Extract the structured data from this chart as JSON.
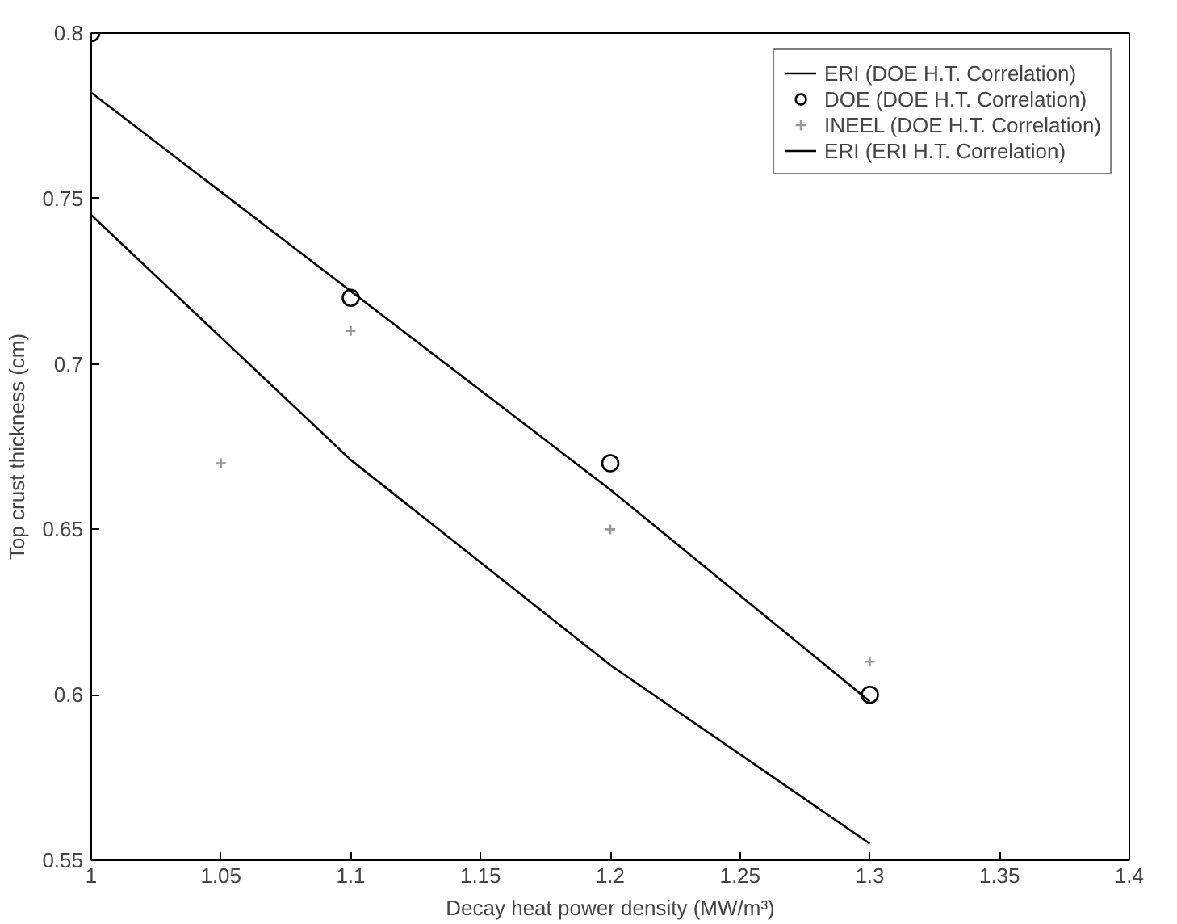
{
  "chart_data": {
    "type": "line",
    "xlabel": "Decay heat power density (MW/m³)",
    "ylabel": "Top crust thickness (cm)",
    "xlim": [
      1,
      1.4
    ],
    "xticks": [
      1,
      1.05,
      1.1,
      1.15,
      1.2,
      1.25,
      1.3,
      1.35,
      1.4
    ],
    "ylim": [
      0.55,
      0.8
    ],
    "yticks": [
      0.55,
      0.6,
      0.65,
      0.7,
      0.75,
      0.8
    ],
    "grid": false,
    "legend": "top right",
    "series": [
      {
        "name": "ERI (DOE H.T. Correlation)",
        "marker": "none",
        "color": "#000000",
        "x": [
          1.0,
          1.1,
          1.2,
          1.3
        ],
        "values": [
          0.782,
          0.722,
          0.662,
          0.598
        ]
      },
      {
        "name": "DOE (DOE H.T. Correlation)",
        "type": "scatter",
        "marker": "circle",
        "color": "#000000",
        "x": [
          1.0,
          1.1,
          1.2,
          1.3
        ],
        "values": [
          0.8,
          0.72,
          0.67,
          0.6
        ]
      },
      {
        "name": "INEEL (DOE H.T. Correlation)",
        "type": "scatter",
        "marker": "cross",
        "color": "#999999",
        "x": [
          1.05,
          1.1,
          1.2,
          1.3
        ],
        "values": [
          0.67,
          0.71,
          0.65,
          0.61
        ]
      },
      {
        "name": "ERI (ERI H.T. Correlation)",
        "marker": "none",
        "color": "#000000",
        "x": [
          1.0,
          1.1,
          1.2,
          1.3
        ],
        "values": [
          0.745,
          0.671,
          0.609,
          0.555
        ]
      }
    ]
  }
}
